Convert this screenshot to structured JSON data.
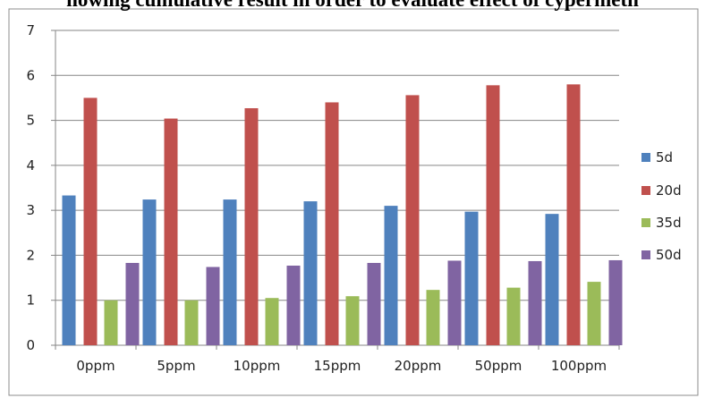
{
  "heading": {
    "text": "howing cumulative result in order to evaluate effect of cypermeth"
  },
  "chart_data": {
    "type": "bar",
    "categories": [
      "0ppm",
      "5ppm",
      "10ppm",
      "15ppm",
      "20ppm",
      "50ppm",
      "100ppm"
    ],
    "series": [
      {
        "name": "5d",
        "color": "#4F81BD",
        "values": [
          3.33,
          3.24,
          3.24,
          3.2,
          3.1,
          2.97,
          2.92
        ]
      },
      {
        "name": "20d",
        "color": "#C0504D",
        "values": [
          5.5,
          5.04,
          5.27,
          5.4,
          5.56,
          5.78,
          5.8
        ]
      },
      {
        "name": "35d",
        "color": "#9BBB59",
        "values": [
          1.0,
          1.0,
          1.05,
          1.09,
          1.23,
          1.28,
          1.41
        ]
      },
      {
        "name": "50d",
        "color": "#8064A2",
        "values": [
          1.83,
          1.74,
          1.77,
          1.83,
          1.88,
          1.87,
          1.89
        ]
      }
    ],
    "yticks": [
      "0",
      "1",
      "2",
      "3",
      "4",
      "5",
      "6",
      "7"
    ],
    "ylim": [
      0,
      7
    ],
    "grid": true,
    "legend": "right"
  }
}
